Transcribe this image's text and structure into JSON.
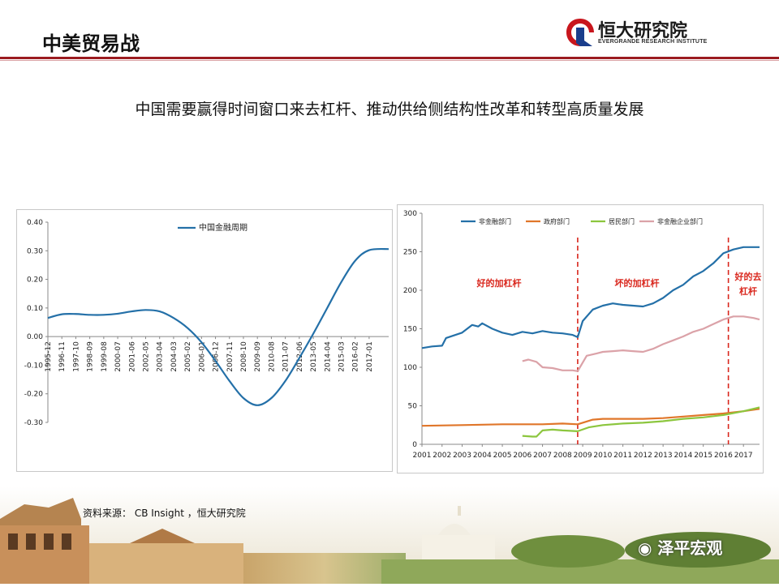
{
  "header": {
    "title": "中美贸易战"
  },
  "logo": {
    "name": "恒大研究院",
    "english": "EVERGRANDE RESEARCH INSTITUTE"
  },
  "subtitle": "中国需要赢得时间窗口来去杠杆、推动供给侧结构性改革和转型高质量发展",
  "source": "资料来源：   CB Insight  ，恒大研究院",
  "watermark": "泽平宏观",
  "colors": {
    "header_rule": "#9b1b20",
    "blue": "#2470a8",
    "orange": "#e0762a",
    "green": "#8cc63e",
    "pink": "#dba2a8",
    "annot": "#d9261c"
  },
  "chart_data": [
    {
      "type": "line",
      "title": "",
      "ylim": [
        -0.3,
        0.4
      ],
      "yticks": [
        "0.40",
        "0.30",
        "0.20",
        "0.10",
        "0.00",
        "-0.10",
        "-0.20",
        "-0.30"
      ],
      "xticks": [
        "1995-12",
        "1996-11",
        "1997-10",
        "1998-09",
        "1999-08",
        "2000-07",
        "2001-06",
        "2002-05",
        "2003-04",
        "2004-03",
        "2005-02",
        "2006-01",
        "2006-12",
        "2007-11",
        "2008-10",
        "2009-09",
        "2010-08",
        "2011-07",
        "2012-06",
        "2013-05",
        "2014-04",
        "2015-03",
        "2016-02",
        "2017-01"
      ],
      "legend": "top",
      "series": [
        {
          "name": "中国金融周期",
          "x": [
            0,
            1,
            2,
            3,
            4,
            5,
            6,
            7,
            8,
            9,
            10,
            11,
            12,
            13,
            14,
            15,
            16,
            17,
            18,
            19,
            20,
            21,
            22,
            23,
            24.4
          ],
          "values": [
            0.065,
            0.078,
            0.079,
            0.076,
            0.076,
            0.08,
            0.088,
            0.093,
            0.088,
            0.065,
            0.03,
            -0.02,
            -0.085,
            -0.155,
            -0.215,
            -0.24,
            -0.215,
            -0.155,
            -0.075,
            0.01,
            0.1,
            0.19,
            0.265,
            0.302,
            0.306
          ]
        }
      ]
    },
    {
      "type": "line",
      "title": "",
      "ylim": [
        0,
        300
      ],
      "yticks": [
        "300",
        "250",
        "200",
        "150",
        "100",
        "50",
        "0"
      ],
      "xticks": [
        "2001",
        "2002",
        "2003",
        "2004",
        "2005",
        "2006",
        "2007",
        "2008",
        "2009",
        "2010",
        "2011",
        "2012",
        "2013",
        "2014",
        "2015",
        "2016",
        "2017"
      ],
      "legend": "top",
      "annotations": [
        "好的加杠杆",
        "坏的加杠杆",
        "好的去",
        "杠杆"
      ],
      "dividers_at_year": [
        2008.75,
        2016.25
      ],
      "series": [
        {
          "name": "非金融部门",
          "x": [
            2001,
            2001.5,
            2002,
            2002.2,
            2003,
            2003.5,
            2003.8,
            2004,
            2004.5,
            2005,
            2005.5,
            2006,
            2006.5,
            2007,
            2007.5,
            2008,
            2008.5,
            2008.75,
            2009,
            2009.5,
            2010,
            2010.5,
            2011,
            2011.5,
            2012,
            2012.5,
            2013,
            2013.5,
            2014,
            2014.5,
            2015,
            2015.5,
            2016,
            2016.5,
            2017,
            2017.5,
            2017.8
          ],
          "values": [
            125,
            127,
            128,
            138,
            145,
            155,
            153,
            157,
            150,
            145,
            142,
            146,
            144,
            147,
            145,
            144,
            142,
            139,
            160,
            175,
            180,
            183,
            181,
            180,
            179,
            183,
            190,
            200,
            207,
            218,
            225,
            235,
            248,
            253,
            256,
            256,
            256
          ]
        },
        {
          "name": "政府部门",
          "x": [
            2001,
            2003,
            2005,
            2007,
            2008,
            2008.75,
            2009.5,
            2010,
            2011,
            2012,
            2013,
            2014,
            2015,
            2016,
            2017,
            2017.8
          ],
          "values": [
            24,
            25,
            26,
            26,
            27,
            26,
            32,
            33,
            33,
            33,
            34,
            36,
            38,
            40,
            43,
            46
          ]
        },
        {
          "name": "居民部门",
          "x": [
            2006,
            2006.5,
            2006.7,
            2007,
            2007.5,
            2008,
            2008.75,
            2009.3,
            2010,
            2011,
            2012,
            2013,
            2014,
            2015,
            2016,
            2017,
            2017.8
          ],
          "values": [
            11,
            10,
            10,
            18,
            19,
            18,
            17,
            22,
            25,
            27,
            28,
            30,
            33,
            35,
            38,
            43,
            48
          ]
        },
        {
          "name": "非金融企业部门",
          "x": [
            2006,
            2006.3,
            2006.7,
            2007,
            2007.5,
            2008,
            2008.5,
            2008.75,
            2009.2,
            2009.7,
            2010,
            2010.5,
            2011,
            2011.5,
            2012,
            2012.5,
            2013,
            2013.5,
            2014,
            2014.5,
            2015,
            2015.5,
            2016,
            2016.5,
            2017,
            2017.5,
            2017.8
          ],
          "values": [
            108,
            110,
            107,
            100,
            99,
            96,
            96,
            95,
            115,
            118,
            120,
            121,
            122,
            121,
            120,
            124,
            130,
            135,
            140,
            146,
            150,
            156,
            162,
            166,
            166,
            164,
            162
          ]
        }
      ]
    }
  ]
}
